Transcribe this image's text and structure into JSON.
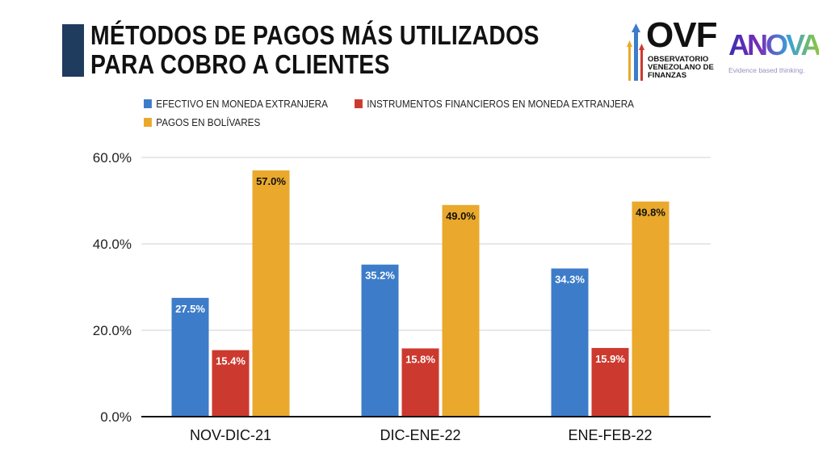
{
  "title": {
    "line1": "MÉTODOS DE PAGOS MÁS UTILIZADOS",
    "line2": "PARA COBRO A CLIENTES"
  },
  "logos": {
    "ovf": "OVF",
    "ovf_sub": [
      "OBSERVATORIO",
      "VENEZOLANO DE",
      "FINANZAS"
    ],
    "anova": "ANOVA",
    "anova_tagline": "Evidence based thinking."
  },
  "chart_data": {
    "type": "bar",
    "title": "MÉTODOS DE PAGOS MÁS UTILIZADOS PARA COBRO A CLIENTES",
    "categories": [
      "NOV-DIC-21",
      "DIC-ENE-22",
      "ENE-FEB-22"
    ],
    "series": [
      {
        "name": "EFECTIVO EN MONEDA EXTRANJERA",
        "color": "#3d7cc9",
        "values": [
          27.5,
          35.2,
          34.3
        ],
        "labels": [
          "27.5%",
          "35.2%",
          "34.3%"
        ]
      },
      {
        "name": "INSTRUMENTOS FINANCIEROS EN MONEDA EXTRANJERA",
        "color": "#cc3a2f",
        "values": [
          15.4,
          15.8,
          15.9
        ],
        "labels": [
          "15.4%",
          "15.8%",
          "15.9%"
        ]
      },
      {
        "name": "PAGOS EN BOLÍVARES",
        "color": "#eaa92c",
        "values": [
          57.0,
          49.0,
          49.8
        ],
        "labels": [
          "57.0%",
          "49.0%",
          "49.8%"
        ]
      }
    ],
    "ylim": [
      0,
      60
    ],
    "yticks": [
      0,
      20,
      40,
      60
    ],
    "ytick_labels": [
      "0.0%",
      "20.0%",
      "40.0%",
      "60.0%"
    ],
    "xlabel": "",
    "ylabel": "",
    "grid": true,
    "legend_position": "top-left"
  }
}
